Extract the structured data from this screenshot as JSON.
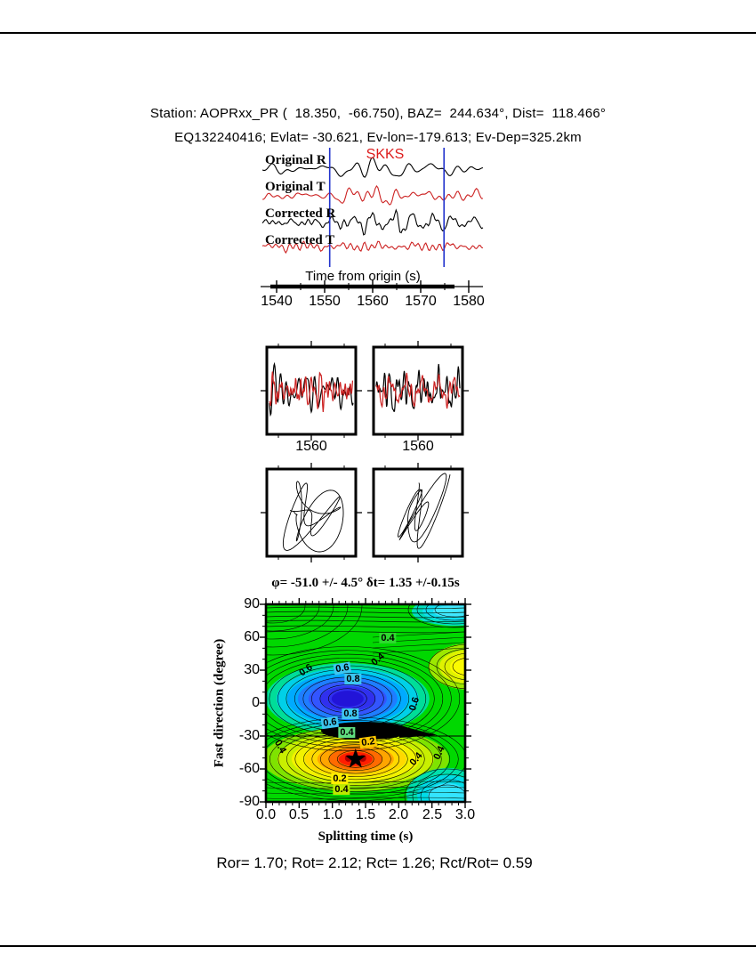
{
  "header": {
    "line1": "Station: AOPRxx_PR (  18.350,  -66.750), BAZ=  244.634°, Dist=  118.466°",
    "line2": "EQ132240416; Evlat= -30.621, Ev-lon=-179.613; Ev-Dep=325.2km"
  },
  "seismograms": {
    "phase_label": "SKKS",
    "phase_label_color": "#dd1c1c",
    "traces": [
      {
        "label": "Original R",
        "color": "#000000"
      },
      {
        "label": "Original T",
        "color": "#cc2222"
      },
      {
        "label": "Corrected R",
        "color": "#000000"
      },
      {
        "label": "Corrected T",
        "color": "#cc2222"
      }
    ],
    "window_markers_s": [
      1550.5,
      1574.3
    ],
    "window_marker_color": "#2233cc",
    "time_axis": {
      "label": "Time from origin (s)",
      "ticks": [
        "1540",
        "1550",
        "1560",
        "1570",
        "1580"
      ],
      "range": [
        1537,
        1583
      ]
    }
  },
  "window_panels": {
    "tick_label": "1560",
    "panels": [
      {
        "name": "waveform-window-original",
        "series": [
          "R black",
          "T red"
        ]
      },
      {
        "name": "waveform-window-corrected",
        "series": [
          "R black",
          "T red"
        ]
      }
    ]
  },
  "particle_panels": [
    {
      "name": "particle-motion-original"
    },
    {
      "name": "particle-motion-corrected"
    }
  ],
  "chart_data": {
    "type": "contour",
    "title": "φ= -51.0 +/- 4.5° δt= 1.35 +/-0.15s",
    "xlabel": "Splitting time (s)",
    "ylabel": "Fast direction (degree)",
    "xlim": [
      0,
      3
    ],
    "ylim": [
      -90,
      90
    ],
    "xticks": [
      "0.0",
      "0.5",
      "1.0",
      "1.5",
      "2.0",
      "2.5",
      "3.0"
    ],
    "yticks": [
      "90",
      "60",
      "30",
      "0",
      "-30",
      "-60",
      "-90"
    ],
    "best_fit": {
      "phi_deg": -51.0,
      "phi_err_deg": 4.5,
      "dt_s": 1.35,
      "dt_err_s": 0.15
    },
    "star": {
      "x": 1.35,
      "y": -51
    },
    "energy_minimum": {
      "x": 1.23,
      "y": 4
    },
    "contour_labels": [
      {
        "v": "0.4",
        "x": 1.84,
        "y": 59,
        "bg": "green",
        "rot": 0
      },
      {
        "v": "0.6",
        "x": 0.6,
        "y": 30,
        "bg": "none",
        "rot": -35
      },
      {
        "v": "0.6",
        "x": 1.15,
        "y": 32,
        "bg": "cyan",
        "rot": -10
      },
      {
        "v": "0.8",
        "x": 1.31,
        "y": 22,
        "bg": "cyan",
        "rot": 0
      },
      {
        "v": "0.4",
        "x": 1.69,
        "y": 40,
        "bg": "none",
        "rot": -40
      },
      {
        "v": "0.6",
        "x": 2.24,
        "y": -1,
        "bg": "none",
        "rot": -72
      },
      {
        "v": "0.8",
        "x": 1.27,
        "y": -10,
        "bg": "cyan",
        "rot": 0
      },
      {
        "v": "0.6",
        "x": 0.96,
        "y": -18,
        "bg": "cyan",
        "rot": -8
      },
      {
        "v": "0.4",
        "x": 1.22,
        "y": -27,
        "bg": "lightgreen",
        "rot": 0
      },
      {
        "v": "0.2",
        "x": 1.54,
        "y": -36,
        "bg": "orange-yellow",
        "rot": -8
      },
      {
        "v": "0.2",
        "x": 1.11,
        "y": -69,
        "bg": "yellow",
        "rot": 0
      },
      {
        "v": "0.4",
        "x": 1.14,
        "y": -79,
        "bg": "yellowgreen",
        "rot": 0
      },
      {
        "v": "0.4",
        "x": 0.21,
        "y": -40,
        "bg": "none",
        "rot": 60
      },
      {
        "v": "0.4",
        "x": 2.61,
        "y": -45,
        "bg": "none",
        "rot": -65
      },
      {
        "v": "0.4",
        "x": 2.26,
        "y": -51,
        "bg": "none",
        "rot": -50
      }
    ],
    "palette": {
      "background": "#00d800",
      "minimum_blue": "#2214d8",
      "maximum_red": "#ff1e00",
      "label_cyan": "#3ec6f0",
      "label_yellow": "#ffee00"
    }
  },
  "footer": {
    "stats": "Ror= 1.70; Rot= 2.12; Rct= 1.26; Rct/Rot= 0.59"
  }
}
